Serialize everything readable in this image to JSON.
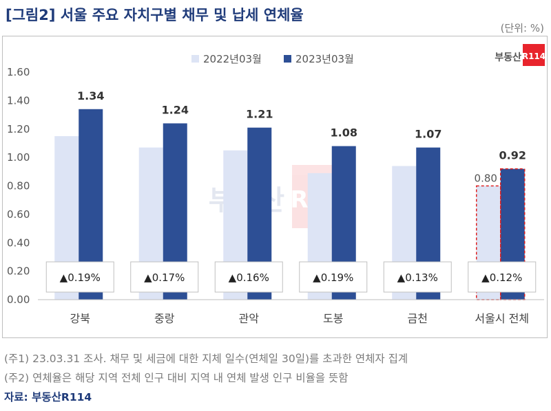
{
  "title": "[그림2] 서울 주요 자치구별 채무 및 납세 연체율",
  "unit": "(단위: %)",
  "brand": {
    "text": "부동산",
    "badge": "R114",
    "badge_color": "#e8242c",
    "watermark": "부동산R114"
  },
  "notes": [
    "(주1) 23.03.31 조사. 채무 및 세금에 대한 지체 일수(연체일 30일)를 초과한 연체자 집계",
    "(주2) 연체율은 해당 지역 전체 인구 대비 지역 내 연체 발생 인구 비율을 뜻함"
  ],
  "source": "자료: 부동산R114",
  "chart_data": {
    "type": "bar",
    "categories": [
      "강북",
      "중랑",
      "관악",
      "도봉",
      "금천",
      "서울시 전체"
    ],
    "series": [
      {
        "name": "2022년03월",
        "values": [
          1.15,
          1.07,
          1.05,
          0.89,
          0.94,
          0.8
        ],
        "color": "#dde4f5"
      },
      {
        "name": "2023년03월",
        "values": [
          1.34,
          1.24,
          1.21,
          1.08,
          1.07,
          0.92
        ],
        "color": "#2d4f95"
      }
    ],
    "data_labels_2023": [
      "1.34",
      "1.24",
      "1.21",
      "1.08",
      "1.07",
      "0.92"
    ],
    "data_label_2022_total": "0.80",
    "changes": [
      "▲0.19%",
      "▲0.17%",
      "▲0.16%",
      "▲0.19%",
      "▲0.13%",
      "▲0.12%"
    ],
    "y_ticks": [
      "0.00",
      "0.20",
      "0.40",
      "0.60",
      "0.80",
      "1.00",
      "1.20",
      "1.40",
      "1.60"
    ],
    "ylim": [
      0,
      1.6
    ],
    "legend_position": "top",
    "grid": false,
    "highlight_category": "서울시 전체",
    "highlight_color": "#e02020"
  }
}
